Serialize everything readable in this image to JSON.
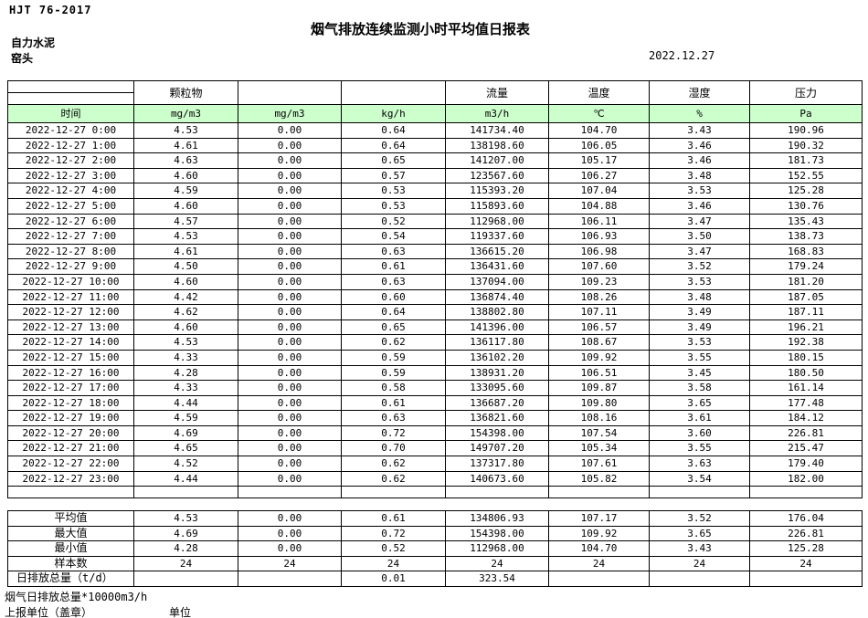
{
  "page": {
    "doc_code": "HJT  76-2017",
    "title": "烟气排放连续监测小时平均值日报表",
    "company": "自力水泥",
    "station": "窑头",
    "date": "2022.12.27"
  },
  "table": {
    "group_headers": [
      "",
      "颗粒物",
      "",
      "",
      "流量",
      "温度",
      "湿度",
      "压力"
    ],
    "unit_row": [
      "时间",
      "mg/m3",
      "mg/m3",
      "kg/h",
      "m3/h",
      "℃",
      "%",
      "Pa"
    ],
    "rows": [
      [
        "2022-12-27 0:00",
        "4.53",
        "0.00",
        "0.64",
        "141734.40",
        "104.70",
        "3.43",
        "190.96"
      ],
      [
        "2022-12-27 1:00",
        "4.61",
        "0.00",
        "0.64",
        "138198.60",
        "106.05",
        "3.46",
        "190.32"
      ],
      [
        "2022-12-27 2:00",
        "4.63",
        "0.00",
        "0.65",
        "141207.00",
        "105.17",
        "3.46",
        "181.73"
      ],
      [
        "2022-12-27 3:00",
        "4.60",
        "0.00",
        "0.57",
        "123567.60",
        "106.27",
        "3.48",
        "152.55"
      ],
      [
        "2022-12-27 4:00",
        "4.59",
        "0.00",
        "0.53",
        "115393.20",
        "107.04",
        "3.53",
        "125.28"
      ],
      [
        "2022-12-27 5:00",
        "4.60",
        "0.00",
        "0.53",
        "115893.60",
        "104.88",
        "3.46",
        "130.76"
      ],
      [
        "2022-12-27 6:00",
        "4.57",
        "0.00",
        "0.52",
        "112968.00",
        "106.11",
        "3.47",
        "135.43"
      ],
      [
        "2022-12-27 7:00",
        "4.53",
        "0.00",
        "0.54",
        "119337.60",
        "106.93",
        "3.50",
        "138.73"
      ],
      [
        "2022-12-27 8:00",
        "4.61",
        "0.00",
        "0.63",
        "136615.20",
        "106.98",
        "3.47",
        "168.83"
      ],
      [
        "2022-12-27 9:00",
        "4.50",
        "0.00",
        "0.61",
        "136431.60",
        "107.60",
        "3.52",
        "179.24"
      ],
      [
        "2022-12-27 10:00",
        "4.60",
        "0.00",
        "0.63",
        "137094.00",
        "109.23",
        "3.53",
        "181.20"
      ],
      [
        "2022-12-27 11:00",
        "4.42",
        "0.00",
        "0.60",
        "136874.40",
        "108.26",
        "3.48",
        "187.05"
      ],
      [
        "2022-12-27 12:00",
        "4.62",
        "0.00",
        "0.64",
        "138802.80",
        "107.11",
        "3.49",
        "187.11"
      ],
      [
        "2022-12-27 13:00",
        "4.60",
        "0.00",
        "0.65",
        "141396.00",
        "106.57",
        "3.49",
        "196.21"
      ],
      [
        "2022-12-27 14:00",
        "4.53",
        "0.00",
        "0.62",
        "136117.80",
        "108.67",
        "3.53",
        "192.38"
      ],
      [
        "2022-12-27 15:00",
        "4.33",
        "0.00",
        "0.59",
        "136102.20",
        "109.92",
        "3.55",
        "180.15"
      ],
      [
        "2022-12-27 16:00",
        "4.28",
        "0.00",
        "0.59",
        "138931.20",
        "106.51",
        "3.45",
        "180.50"
      ],
      [
        "2022-12-27 17:00",
        "4.33",
        "0.00",
        "0.58",
        "133095.60",
        "109.87",
        "3.58",
        "161.14"
      ],
      [
        "2022-12-27 18:00",
        "4.44",
        "0.00",
        "0.61",
        "136687.20",
        "109.80",
        "3.65",
        "177.48"
      ],
      [
        "2022-12-27 19:00",
        "4.59",
        "0.00",
        "0.63",
        "136821.60",
        "108.16",
        "3.61",
        "184.12"
      ],
      [
        "2022-12-27 20:00",
        "4.69",
        "0.00",
        "0.72",
        "154398.00",
        "107.54",
        "3.60",
        "226.81"
      ],
      [
        "2022-12-27 21:00",
        "4.65",
        "0.00",
        "0.70",
        "149707.20",
        "105.34",
        "3.55",
        "215.47"
      ],
      [
        "2022-12-27 22:00",
        "4.52",
        "0.00",
        "0.62",
        "137317.80",
        "107.61",
        "3.63",
        "179.40"
      ],
      [
        "2022-12-27 23:00",
        "4.44",
        "0.00",
        "0.62",
        "140673.60",
        "105.82",
        "3.54",
        "182.00"
      ]
    ],
    "summary": [
      [
        "平均值",
        "4.53",
        "0.00",
        "0.61",
        "134806.93",
        "107.17",
        "3.52",
        "176.04"
      ],
      [
        "最大值",
        "4.69",
        "0.00",
        "0.72",
        "154398.00",
        "109.92",
        "3.65",
        "226.81"
      ],
      [
        "最小值",
        "4.28",
        "0.00",
        "0.52",
        "112968.00",
        "104.70",
        "3.43",
        "125.28"
      ],
      [
        "样本数",
        "24",
        "24",
        "24",
        "24",
        "24",
        "24",
        "24"
      ],
      [
        "日排放总量（t/d）",
        "",
        "",
        "0.01",
        "323.54",
        "",
        "",
        ""
      ]
    ]
  },
  "footer": {
    "note": "烟气日排放总量*10000m3/h",
    "report_unit": "上报单位（盖章）",
    "unit_label": "单位"
  },
  "colors": {
    "header_green": "#ccffcc"
  }
}
